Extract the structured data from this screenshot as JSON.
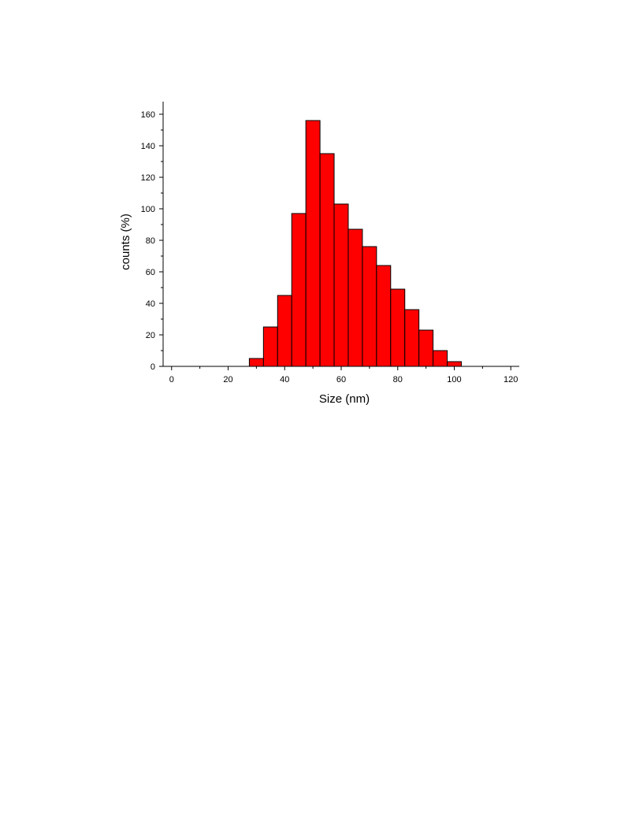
{
  "chart_data": {
    "type": "bar",
    "title": "",
    "xlabel": "Size (nm)",
    "ylabel": "counts (%)",
    "xlim": [
      -3,
      123
    ],
    "ylim": [
      0,
      168
    ],
    "xticks": [
      0,
      20,
      40,
      60,
      80,
      100,
      120
    ],
    "yticks": [
      0,
      20,
      40,
      60,
      80,
      100,
      120,
      140,
      160
    ],
    "bin_width": 5,
    "bins": [
      {
        "x0": 27.5,
        "x1": 32.5,
        "value": 5
      },
      {
        "x0": 32.5,
        "x1": 37.5,
        "value": 25
      },
      {
        "x0": 37.5,
        "x1": 42.5,
        "value": 45
      },
      {
        "x0": 42.5,
        "x1": 47.5,
        "value": 97
      },
      {
        "x0": 47.5,
        "x1": 52.5,
        "value": 156
      },
      {
        "x0": 52.5,
        "x1": 57.5,
        "value": 135
      },
      {
        "x0": 57.5,
        "x1": 62.5,
        "value": 103
      },
      {
        "x0": 62.5,
        "x1": 67.5,
        "value": 87
      },
      {
        "x0": 67.5,
        "x1": 72.5,
        "value": 76
      },
      {
        "x0": 72.5,
        "x1": 77.5,
        "value": 64
      },
      {
        "x0": 77.5,
        "x1": 82.5,
        "value": 49
      },
      {
        "x0": 82.5,
        "x1": 87.5,
        "value": 36
      },
      {
        "x0": 87.5,
        "x1": 92.5,
        "value": 23
      },
      {
        "x0": 92.5,
        "x1": 97.5,
        "value": 10
      },
      {
        "x0": 97.5,
        "x1": 102.5,
        "value": 3
      }
    ],
    "grid": false,
    "legend": "none",
    "colors": {
      "bar_fill": "#ff0000",
      "bar_edge": "#000000",
      "axis": "#000000"
    }
  }
}
